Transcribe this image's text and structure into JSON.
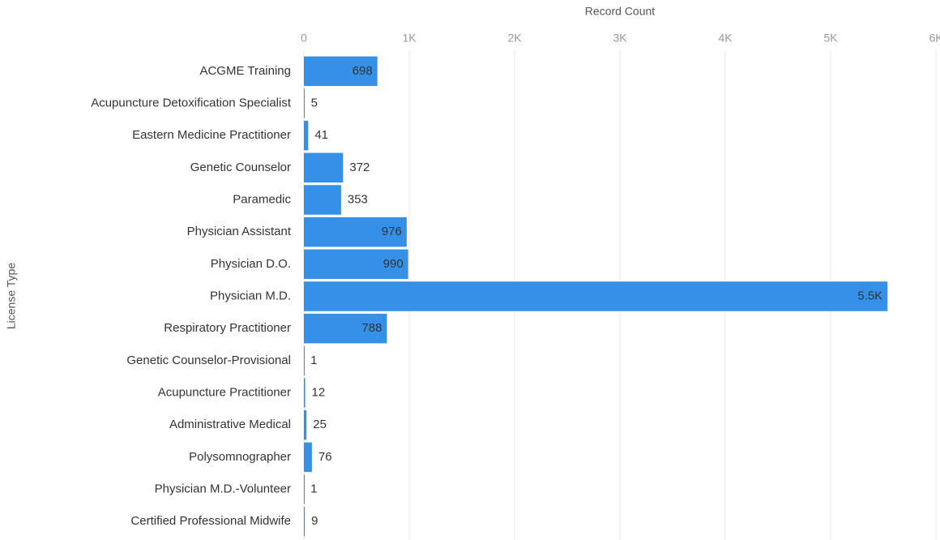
{
  "chart_data": {
    "type": "bar",
    "orientation": "horizontal",
    "x_axis_label": "Record Count",
    "y_axis_label": "License Type",
    "categories": [
      "ACGME Training",
      "Acupuncture Detoxification Specialist",
      "Eastern Medicine Practitioner",
      "Genetic Counselor",
      "Paramedic",
      "Physician Assistant",
      "Physician D.O.",
      "Physician M.D.",
      "Respiratory Practitioner",
      "Genetic Counselor-Provisional",
      "Acupuncture Practitioner",
      "Administrative Medical",
      "Polysomnographer",
      "Physician M.D.-Volunteer",
      "Certified Professional Midwife"
    ],
    "values": [
      698,
      5,
      41,
      372,
      353,
      976,
      990,
      5540,
      788,
      1,
      12,
      25,
      76,
      1,
      9
    ],
    "value_labels": [
      "698",
      "5",
      "41",
      "372",
      "353",
      "976",
      "990",
      "5.5K",
      "788",
      "1",
      "12",
      "25",
      "76",
      "1",
      "9"
    ],
    "color": "#3591e8",
    "xlim": [
      0,
      6000
    ],
    "xticks": [
      0,
      {
        "value": 1000,
        "label": "1K"
      },
      {
        "value": 2000,
        "label": "2K"
      },
      {
        "value": 3000,
        "label": "3K"
      },
      {
        "value": 4000,
        "label": "4K"
      },
      {
        "value": 5000,
        "label": "5K"
      },
      {
        "value": 6000,
        "label": "6K"
      }
    ],
    "grid": true
  }
}
